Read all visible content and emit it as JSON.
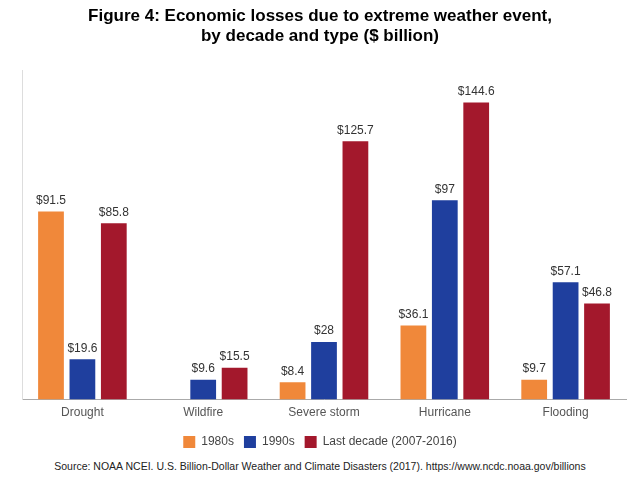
{
  "chart_data": {
    "type": "bar",
    "title": "Figure 4: Economic losses due to extreme weather event,\nby decade and type ($ billion)",
    "annotations": [
      "Source: NOAA NCEI. U.S. Billion-Dollar Weather and Climate Disasters (2017). https://www.ncdc.noaa.gov/billions"
    ],
    "categories": [
      "Drought",
      "Wildfire",
      "Severe storm",
      "Hurricane",
      "Flooding"
    ],
    "series": [
      {
        "name": "1980s",
        "color": "#f0883a",
        "values": [
          91.5,
          null,
          8.4,
          36.1,
          9.7
        ],
        "value_labels": [
          "$91.5",
          null,
          "$8.4",
          "$36.1",
          "$9.7"
        ]
      },
      {
        "name": "1990s",
        "color": "#1f3f9e",
        "values": [
          19.6,
          9.6,
          28,
          97,
          57.1
        ],
        "value_labels": [
          "$19.6",
          "$9.6",
          "$28",
          "$97",
          "$57.1"
        ]
      },
      {
        "name": "Last decade (2007-2016)",
        "color": "#a3182c",
        "values": [
          85.8,
          15.5,
          125.7,
          144.6,
          46.8
        ],
        "value_labels": [
          "$85.8",
          "$15.5",
          "$125.7",
          "$144.6",
          "$46.8"
        ]
      }
    ],
    "ylim": [
      0,
      160
    ],
    "grid": false,
    "legend": "bottom",
    "data_labels": true,
    "tick_labels": "x"
  }
}
